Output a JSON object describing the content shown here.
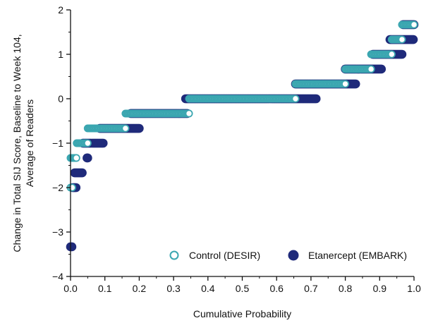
{
  "chart_data": {
    "type": "scatter",
    "title": "",
    "xlabel": "Cumulative Probability",
    "ylabel_lines": [
      "Change in Total SIJ Score, Baseline to Week 104,",
      "Average of Readers"
    ],
    "xlim": [
      0.0,
      1.0
    ],
    "ylim": [
      -4,
      2
    ],
    "x_ticks": [
      "0.0",
      "0.1",
      "0.2",
      "0.3",
      "0.4",
      "0.5",
      "0.6",
      "0.7",
      "0.8",
      "0.9",
      "1.0"
    ],
    "y_ticks": [
      "2",
      "1",
      "0",
      "−1",
      "−2",
      "−3",
      "−4"
    ],
    "legend_position": "bottom-right",
    "series": [
      {
        "name": "Etanercept (EMBARK)",
        "color": "#1f2a7a",
        "style": "filled",
        "segments": [
          {
            "y": -3.333,
            "x_start": 0.0,
            "x_end": 0.004
          },
          {
            "y": -2.0,
            "x_start": 0.006,
            "x_end": 0.016
          },
          {
            "y": -1.667,
            "x_start": 0.012,
            "x_end": 0.034
          },
          {
            "y": -1.333,
            "x_start": 0.048,
            "x_end": 0.05
          },
          {
            "y": -1.0,
            "x_start": 0.036,
            "x_end": 0.095
          },
          {
            "y": -0.667,
            "x_start": 0.085,
            "x_end": 0.2
          },
          {
            "y": -0.333,
            "x_start": 0.175,
            "x_end": 0.34
          },
          {
            "y": 0.0,
            "x_start": 0.335,
            "x_end": 0.715
          },
          {
            "y": 0.333,
            "x_start": 0.655,
            "x_end": 0.83
          },
          {
            "y": 0.667,
            "x_start": 0.8,
            "x_end": 0.905
          },
          {
            "y": 1.0,
            "x_start": 0.88,
            "x_end": 0.965
          },
          {
            "y": 1.333,
            "x_start": 0.93,
            "x_end": 0.998
          },
          {
            "y": 1.667,
            "x_start": 0.968,
            "x_end": 1.0
          }
        ]
      },
      {
        "name": "Control (DESIR)",
        "color": "#3aa6b0",
        "style": "hollow",
        "segments": [
          {
            "y": -2.0,
            "x_start": 0.0,
            "x_end": 0.005
          },
          {
            "y": -1.333,
            "x_start": 0.0,
            "x_end": 0.017
          },
          {
            "y": -1.0,
            "x_start": 0.018,
            "x_end": 0.05
          },
          {
            "y": -0.667,
            "x_start": 0.05,
            "x_end": 0.16
          },
          {
            "y": -0.333,
            "x_start": 0.16,
            "x_end": 0.345
          },
          {
            "y": 0.0,
            "x_start": 0.345,
            "x_end": 0.655
          },
          {
            "y": 0.333,
            "x_start": 0.655,
            "x_end": 0.8
          },
          {
            "y": 0.667,
            "x_start": 0.8,
            "x_end": 0.875
          },
          {
            "y": 1.0,
            "x_start": 0.875,
            "x_end": 0.935
          },
          {
            "y": 1.333,
            "x_start": 0.935,
            "x_end": 0.965
          },
          {
            "y": 1.667,
            "x_start": 0.965,
            "x_end": 1.0
          }
        ]
      }
    ],
    "legend": [
      {
        "label": "Control (DESIR)",
        "color": "#3aa6b0",
        "style": "hollow"
      },
      {
        "label": "Etanercept (EMBARK)",
        "color": "#1f2a7a",
        "style": "filled"
      }
    ]
  }
}
